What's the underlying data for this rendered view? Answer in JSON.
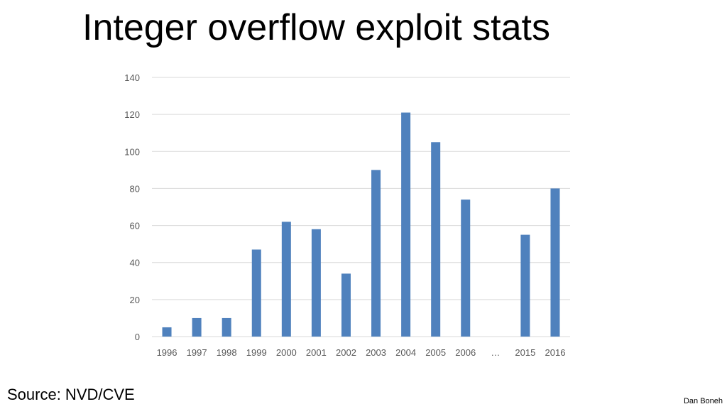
{
  "slide": {
    "title": "Integer overflow exploit stats",
    "source": "Source:  NVD/CVE",
    "author": "Dan Boneh"
  },
  "chart_data": {
    "type": "bar",
    "title": "",
    "xlabel": "",
    "ylabel": "",
    "categories": [
      "1996",
      "1997",
      "1998",
      "1999",
      "2000",
      "2001",
      "2002",
      "2003",
      "2004",
      "2005",
      "2006",
      "…",
      "2015",
      "2016"
    ],
    "values": [
      5,
      10,
      10,
      47,
      62,
      58,
      34,
      90,
      121,
      105,
      74,
      null,
      55,
      80
    ],
    "ylim": [
      0,
      140
    ],
    "yticks": [
      0,
      20,
      40,
      60,
      80,
      100,
      120,
      140
    ],
    "grid": true,
    "legend": "none",
    "bar_color": "#4F81BD",
    "grid_color": "#D9D9D9",
    "tick_label_color": "#595959"
  }
}
